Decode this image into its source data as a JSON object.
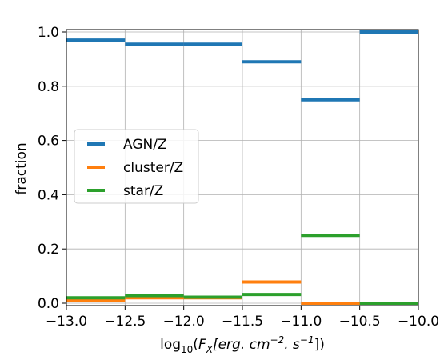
{
  "chart_data": {
    "type": "step",
    "ylabel": "fraction",
    "xlabel": {
      "base": "log",
      "sub": "10",
      "open": "(",
      "var": "F",
      "var_sub": "X",
      "unit_a": "[erg. cm",
      "exp_a": "−2",
      "unit_b": ". s",
      "exp_b": "−1",
      "close": "])"
    },
    "xlim": [
      -13.0,
      -10.0
    ],
    "ylim": [
      0.0,
      1.0
    ],
    "x_ticks": [
      -13.0,
      -12.5,
      -12.0,
      -11.5,
      -11.0,
      -10.5,
      -10.0
    ],
    "x_tick_labels": [
      "−13.0",
      "−12.5",
      "−12.0",
      "−11.5",
      "−11.0",
      "−10.5",
      "−10.0"
    ],
    "y_ticks": [
      0.0,
      0.2,
      0.4,
      0.6,
      0.8,
      1.0
    ],
    "y_tick_labels": [
      "0.0",
      "0.2",
      "0.4",
      "0.6",
      "0.8",
      "1.0"
    ],
    "grid": true,
    "legend_position": "center-left",
    "bin_edges": [
      -13.0,
      -12.5,
      -12.0,
      -11.5,
      -11.0,
      -10.5,
      -10.0
    ],
    "series": [
      {
        "name": "AGN/Z",
        "color": "#1f77b4",
        "values": [
          0.97,
          0.955,
          0.955,
          0.89,
          0.75,
          1.0
        ]
      },
      {
        "name": "cluster/Z",
        "color": "#ff7f0e",
        "values": [
          0.01,
          0.02,
          0.02,
          0.078,
          0.0,
          0.0
        ]
      },
      {
        "name": "star/Z",
        "color": "#2ca02c",
        "values": [
          0.02,
          0.028,
          0.022,
          0.032,
          0.25,
          0.0
        ]
      }
    ]
  }
}
